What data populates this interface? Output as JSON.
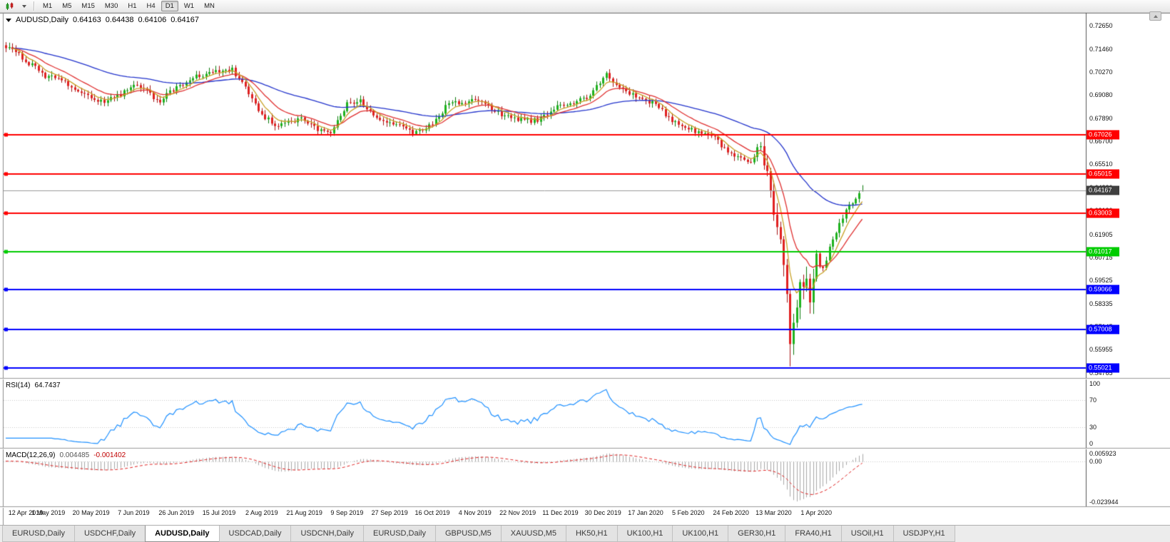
{
  "toolbar": {
    "timeframes": [
      "M1",
      "M5",
      "M15",
      "M30",
      "H1",
      "H4",
      "D1",
      "W1",
      "MN"
    ],
    "active_timeframe": "D1"
  },
  "chart": {
    "symbol_label": "AUDUSD,Daily",
    "ohlc": {
      "open": "0.64163",
      "high": "0.64438",
      "low": "0.64106",
      "close": "0.64167"
    },
    "colors": {
      "background": "#ffffff",
      "up": "#1db31d",
      "down": "#e02020",
      "up_border": "#0c7a0c",
      "down_border": "#a31212"
    },
    "price_axis_labels": [
      "0.72650",
      "0.71460",
      "0.70270",
      "0.69080",
      "0.67890",
      "0.66700",
      "0.65510",
      "0.64320",
      "0.63130",
      "0.61905",
      "0.60715",
      "0.59525",
      "0.58335",
      "0.57145",
      "0.55955",
      "0.54765"
    ],
    "hlines": [
      {
        "value": 0.67026,
        "label": "0.67026",
        "color": "#ff0000"
      },
      {
        "value": 0.65015,
        "label": "0.65015",
        "color": "#ff0000"
      },
      {
        "value": 0.63003,
        "label": "0.63003",
        "color": "#ff0000"
      },
      {
        "value": 0.61017,
        "label": "0.61017",
        "color": "#00cc00"
      },
      {
        "value": 0.59066,
        "label": "0.59066",
        "color": "#0000ff"
      },
      {
        "value": 0.57008,
        "label": "0.57008",
        "color": "#0000ff"
      },
      {
        "value": 0.55021,
        "label": "0.55021",
        "color": "#0000ff"
      }
    ],
    "current_price": {
      "value": 0.64167,
      "label": "0.64167",
      "line_color": "#9a9a9a",
      "tag_bg": "#3f3f3f"
    },
    "date_labels": [
      "12 Apr 2019",
      "1 May 2019",
      "20 May 2019",
      "7 Jun 2019",
      "26 Jun 2019",
      "15 Jul 2019",
      "2 Aug 2019",
      "21 Aug 2019",
      "9 Sep 2019",
      "27 Sep 2019",
      "16 Oct 2019",
      "4 Nov 2019",
      "22 Nov 2019",
      "11 Dec 2019",
      "30 Dec 2019",
      "17 Jan 2020",
      "5 Feb 2020",
      "24 Feb 2020",
      "13 Mar 2020",
      "1 Apr 2020"
    ]
  },
  "indicators": {
    "rsi": {
      "label": "RSI(14)",
      "value": "64.7437",
      "color": "#1e90ff",
      "scale_labels": [
        "100",
        "70",
        "30",
        "0"
      ]
    },
    "macd": {
      "label": "MACD(12,26,9)",
      "main_value": "0.004485",
      "signal_value": "-0.001402",
      "hist_color": "#a8a8a8",
      "signal_color": "#e02020",
      "scale_labels": [
        "0.005923",
        "0.00",
        "-0.023944"
      ],
      "range": {
        "max": 0.007,
        "min": -0.0265
      }
    }
  },
  "chart_data": {
    "type": "candlestick",
    "symbol": "AUDUSD",
    "timeframe": "Daily",
    "title": "AUDUSD,Daily",
    "candle_count": 262,
    "x_range": [
      "12 Apr 2019",
      "mid Apr 2020"
    ],
    "price_range_visible": {
      "max": 0.731,
      "min": 0.545
    },
    "key_points": {
      "start_close": 0.715,
      "dec_2019_high": 0.7022,
      "mar_2020_low": 0.551,
      "last_close": 0.64167
    },
    "price_path_anchors": [
      [
        0,
        0.715
      ],
      [
        4,
        0.7118
      ],
      [
        8,
        0.706
      ],
      [
        11,
        0.7012
      ],
      [
        13,
        0.7008
      ],
      [
        17,
        0.6988
      ],
      [
        21,
        0.6942
      ],
      [
        26,
        0.689
      ],
      [
        30,
        0.6878
      ],
      [
        34,
        0.69
      ],
      [
        39,
        0.6958
      ],
      [
        43,
        0.693
      ],
      [
        47,
        0.6872
      ],
      [
        52,
        0.6952
      ],
      [
        56,
        0.6988
      ],
      [
        60,
        0.7008
      ],
      [
        65,
        0.7032
      ],
      [
        69,
        0.7042
      ],
      [
        73,
        0.6948
      ],
      [
        78,
        0.6805
      ],
      [
        82,
        0.6758
      ],
      [
        86,
        0.6772
      ],
      [
        91,
        0.6782
      ],
      [
        95,
        0.6732
      ],
      [
        99,
        0.6716
      ],
      [
        104,
        0.6855
      ],
      [
        108,
        0.6878
      ],
      [
        112,
        0.6795
      ],
      [
        117,
        0.6772
      ],
      [
        121,
        0.6742
      ],
      [
        125,
        0.6716
      ],
      [
        130,
        0.6752
      ],
      [
        134,
        0.685
      ],
      [
        139,
        0.6875
      ],
      [
        143,
        0.6888
      ],
      [
        147,
        0.6855
      ],
      [
        151,
        0.6802
      ],
      [
        156,
        0.679
      ],
      [
        160,
        0.6772
      ],
      [
        164,
        0.68
      ],
      [
        169,
        0.6868
      ],
      [
        173,
        0.6858
      ],
      [
        177,
        0.6898
      ],
      [
        181,
        0.6975
      ],
      [
        183,
        0.7022
      ],
      [
        187,
        0.694
      ],
      [
        191,
        0.6905
      ],
      [
        195,
        0.6878
      ],
      [
        199,
        0.6848
      ],
      [
        203,
        0.6775
      ],
      [
        208,
        0.6742
      ],
      [
        212,
        0.6716
      ],
      [
        216,
        0.6688
      ],
      [
        220,
        0.6612
      ],
      [
        224,
        0.6588
      ],
      [
        227,
        0.6555
      ],
      [
        230,
        0.663
      ],
      [
        232,
        0.65
      ],
      [
        234,
        0.629
      ],
      [
        236,
        0.6135
      ],
      [
        238,
        0.586
      ],
      [
        239,
        0.5625
      ],
      [
        240,
        0.5755
      ],
      [
        242,
        0.5935
      ],
      [
        244,
        0.5965
      ],
      [
        245,
        0.5835
      ],
      [
        246,
        0.594
      ],
      [
        247,
        0.6065
      ],
      [
        249,
        0.601
      ],
      [
        251,
        0.6125
      ],
      [
        253,
        0.6185
      ],
      [
        255,
        0.6282
      ],
      [
        257,
        0.6345
      ],
      [
        259,
        0.638
      ],
      [
        261,
        0.64167
      ]
    ],
    "moving_averages": [
      {
        "period": 55,
        "color": "#2233cc"
      },
      {
        "period": 14,
        "color": "#e03030"
      },
      {
        "period": 6,
        "color": "#c9a227"
      }
    ],
    "support_resistance_levels": [
      0.67026,
      0.65015,
      0.63003,
      0.61017,
      0.59066,
      0.57008,
      0.55021
    ]
  },
  "tabs": {
    "items": [
      "EURUSD,Daily",
      "USDCHF,Daily",
      "AUDUSD,Daily",
      "USDCAD,Daily",
      "USDCNH,Daily",
      "EURUSD,Daily",
      "GBPUSD,M5",
      "XAUUSD,M5",
      "HK50,H1",
      "UK100,H1",
      "UK100,H1",
      "GER30,H1",
      "FRA40,H1",
      "USOil,H1",
      "USDJPY,H1"
    ],
    "active_index": 2
  }
}
